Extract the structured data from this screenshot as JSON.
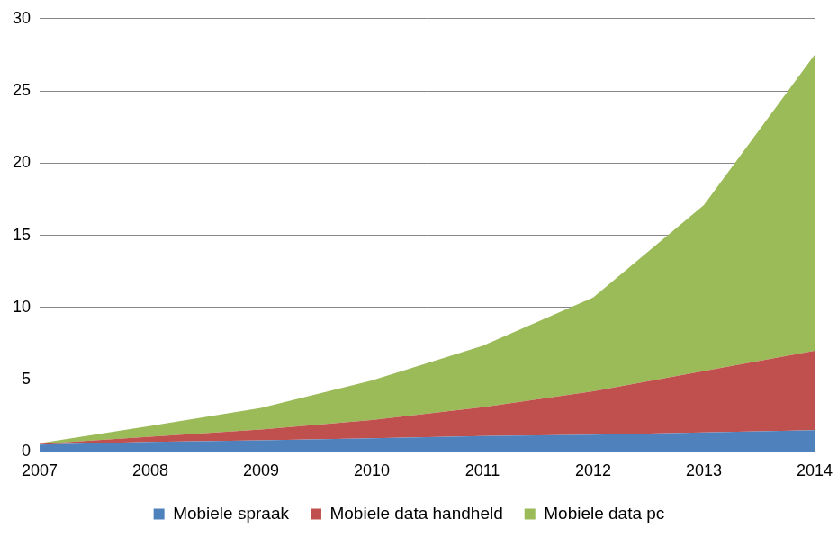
{
  "chart_data": {
    "type": "area",
    "categories": [
      "2007",
      "2008",
      "2009",
      "2010",
      "2011",
      "2012",
      "2013",
      "2014"
    ],
    "series": [
      {
        "name": "Mobiele spraak",
        "color": "#4f81bd",
        "values": [
          0.5,
          0.7,
          0.8,
          0.95,
          1.1,
          1.2,
          1.35,
          1.5
        ]
      },
      {
        "name": "Mobiele data handheld",
        "color": "#c0504d",
        "values": [
          0.05,
          0.35,
          0.75,
          1.25,
          2.0,
          3.0,
          4.25,
          5.5
        ]
      },
      {
        "name": "Mobiele data pc",
        "color": "#9bbb59",
        "values": [
          0.05,
          0.75,
          1.5,
          2.75,
          4.25,
          6.5,
          11.5,
          20.5
        ]
      }
    ],
    "ylim": [
      0,
      30
    ],
    "yticks": [
      0,
      5,
      10,
      15,
      20,
      25,
      30
    ],
    "stacked": true,
    "grid": true,
    "legend": "bottom"
  }
}
